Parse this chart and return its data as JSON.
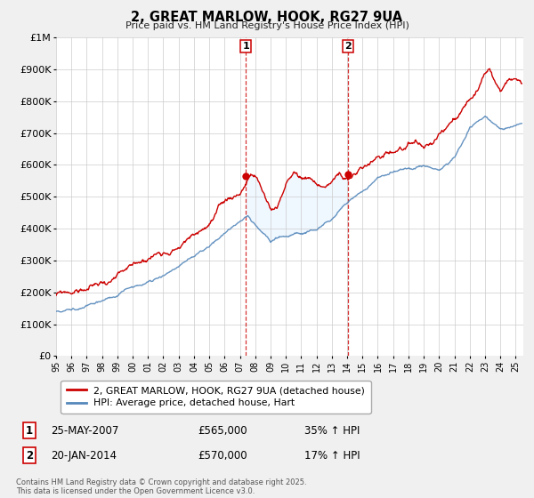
{
  "title": "2, GREAT MARLOW, HOOK, RG27 9UA",
  "subtitle": "Price paid vs. HM Land Registry's House Price Index (HPI)",
  "ylabel_ticks": [
    "£0",
    "£100K",
    "£200K",
    "£300K",
    "£400K",
    "£500K",
    "£600K",
    "£700K",
    "£800K",
    "£900K",
    "£1M"
  ],
  "ytick_values": [
    0,
    100000,
    200000,
    300000,
    400000,
    500000,
    600000,
    700000,
    800000,
    900000,
    1000000
  ],
  "ylim": [
    0,
    1000000
  ],
  "xlim_start": 1995.0,
  "xlim_end": 2025.5,
  "sale1_date": 2007.39,
  "sale1_price": 565000,
  "sale1_label": "1",
  "sale1_hpi_pct": "35% ↑ HPI",
  "sale1_date_str": "25-MAY-2007",
  "sale2_date": 2014.05,
  "sale2_price": 570000,
  "sale2_label": "2",
  "sale2_hpi_pct": "17% ↑ HPI",
  "sale2_date_str": "20-JAN-2014",
  "line1_color": "#cc0000",
  "line2_color": "#5588bb",
  "shade_color": "#ddeeff",
  "legend1_label": "2, GREAT MARLOW, HOOK, RG27 9UA (detached house)",
  "legend2_label": "HPI: Average price, detached house, Hart",
  "footnote": "Contains HM Land Registry data © Crown copyright and database right 2025.\nThis data is licensed under the Open Government Licence v3.0.",
  "background_color": "#f0f0f0",
  "plot_bg_color": "#ffffff",
  "xtick_years": [
    1995,
    1996,
    1997,
    1998,
    1999,
    2000,
    2001,
    2002,
    2003,
    2004,
    2005,
    2006,
    2007,
    2008,
    2009,
    2010,
    2011,
    2012,
    2013,
    2014,
    2015,
    2016,
    2017,
    2018,
    2019,
    2020,
    2021,
    2022,
    2023,
    2024,
    2025
  ]
}
